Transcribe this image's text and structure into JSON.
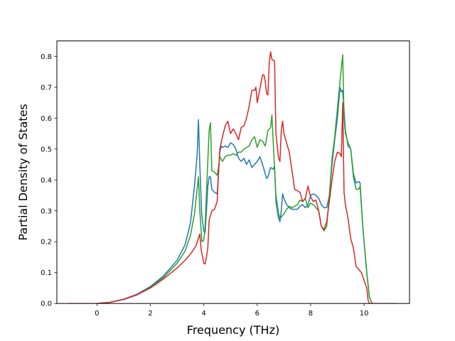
{
  "chart_data": {
    "type": "line",
    "title": "",
    "xlabel": "Frequency (THz)",
    "ylabel": "Partial Density of States",
    "xlim": [
      -1.5,
      11.7
    ],
    "ylim": [
      0.0,
      0.85
    ],
    "xticks": [
      0,
      2,
      4,
      6,
      8,
      10
    ],
    "yticks": [
      0.0,
      0.1,
      0.2,
      0.3,
      0.4,
      0.5,
      0.6,
      0.7,
      0.8
    ],
    "xtick_labels": [
      "0",
      "2",
      "4",
      "6",
      "8",
      "10"
    ],
    "ytick_labels": [
      "0.0",
      "0.1",
      "0.2",
      "0.3",
      "0.4",
      "0.5",
      "0.6",
      "0.7",
      "0.8"
    ],
    "grid": false,
    "legend": false,
    "series": [
      {
        "color": "#1f77b4",
        "points": [
          [
            -1.05,
            0.0
          ],
          [
            0.0,
            0.0
          ],
          [
            0.5,
            0.004
          ],
          [
            1.0,
            0.014
          ],
          [
            1.5,
            0.03
          ],
          [
            2.0,
            0.055
          ],
          [
            2.5,
            0.09
          ],
          [
            3.0,
            0.14
          ],
          [
            3.3,
            0.19
          ],
          [
            3.5,
            0.26
          ],
          [
            3.65,
            0.38
          ],
          [
            3.75,
            0.48
          ],
          [
            3.8,
            0.595
          ],
          [
            3.85,
            0.45
          ],
          [
            3.92,
            0.29
          ],
          [
            4.0,
            0.235
          ],
          [
            4.05,
            0.23
          ],
          [
            4.1,
            0.3
          ],
          [
            4.15,
            0.38
          ],
          [
            4.2,
            0.41
          ],
          [
            4.25,
            0.41
          ],
          [
            4.3,
            0.37
          ],
          [
            4.4,
            0.36
          ],
          [
            4.5,
            0.355
          ],
          [
            4.55,
            0.42
          ],
          [
            4.6,
            0.49
          ],
          [
            4.65,
            0.51
          ],
          [
            4.7,
            0.505
          ],
          [
            4.8,
            0.51
          ],
          [
            4.9,
            0.505
          ],
          [
            5.0,
            0.52
          ],
          [
            5.1,
            0.515
          ],
          [
            5.2,
            0.5
          ],
          [
            5.3,
            0.47
          ],
          [
            5.4,
            0.46
          ],
          [
            5.5,
            0.47
          ],
          [
            5.6,
            0.45
          ],
          [
            5.7,
            0.465
          ],
          [
            5.8,
            0.44
          ],
          [
            5.9,
            0.45
          ],
          [
            6.0,
            0.46
          ],
          [
            6.1,
            0.475
          ],
          [
            6.2,
            0.45
          ],
          [
            6.3,
            0.42
          ],
          [
            6.35,
            0.405
          ],
          [
            6.4,
            0.41
          ],
          [
            6.5,
            0.44
          ],
          [
            6.6,
            0.435
          ],
          [
            6.65,
            0.445
          ],
          [
            6.7,
            0.33
          ],
          [
            6.8,
            0.275
          ],
          [
            6.85,
            0.265
          ],
          [
            6.9,
            0.3
          ],
          [
            6.95,
            0.355
          ],
          [
            7.0,
            0.34
          ],
          [
            7.1,
            0.32
          ],
          [
            7.2,
            0.31
          ],
          [
            7.3,
            0.305
          ],
          [
            7.4,
            0.305
          ],
          [
            7.5,
            0.305
          ],
          [
            7.6,
            0.315
          ],
          [
            7.7,
            0.32
          ],
          [
            7.8,
            0.31
          ],
          [
            7.9,
            0.32
          ],
          [
            8.0,
            0.35
          ],
          [
            8.1,
            0.355
          ],
          [
            8.2,
            0.35
          ],
          [
            8.3,
            0.34
          ],
          [
            8.4,
            0.32
          ],
          [
            8.5,
            0.31
          ],
          [
            8.6,
            0.31
          ],
          [
            8.7,
            0.35
          ],
          [
            8.8,
            0.45
          ],
          [
            8.9,
            0.53
          ],
          [
            9.0,
            0.6
          ],
          [
            9.1,
            0.7
          ],
          [
            9.15,
            0.685
          ],
          [
            9.2,
            0.69
          ],
          [
            9.3,
            0.56
          ],
          [
            9.4,
            0.51
          ],
          [
            9.5,
            0.5
          ],
          [
            9.6,
            0.42
          ],
          [
            9.7,
            0.39
          ],
          [
            9.8,
            0.395
          ],
          [
            9.85,
            0.39
          ],
          [
            9.95,
            0.25
          ],
          [
            10.1,
            0.1
          ],
          [
            10.2,
            0.02
          ],
          [
            10.3,
            0.0
          ],
          [
            11.25,
            0.0
          ]
        ]
      },
      {
        "color": "#2ca02c",
        "points": [
          [
            -1.05,
            0.0
          ],
          [
            0.0,
            0.0
          ],
          [
            0.5,
            0.004
          ],
          [
            1.0,
            0.013
          ],
          [
            1.5,
            0.028
          ],
          [
            2.0,
            0.052
          ],
          [
            2.5,
            0.085
          ],
          [
            3.0,
            0.13
          ],
          [
            3.3,
            0.17
          ],
          [
            3.5,
            0.22
          ],
          [
            3.65,
            0.29
          ],
          [
            3.75,
            0.37
          ],
          [
            3.8,
            0.41
          ],
          [
            3.85,
            0.3
          ],
          [
            3.93,
            0.2
          ],
          [
            4.0,
            0.205
          ],
          [
            4.05,
            0.25
          ],
          [
            4.1,
            0.36
          ],
          [
            4.2,
            0.56
          ],
          [
            4.25,
            0.585
          ],
          [
            4.3,
            0.43
          ],
          [
            4.4,
            0.425
          ],
          [
            4.5,
            0.415
          ],
          [
            4.55,
            0.44
          ],
          [
            4.6,
            0.475
          ],
          [
            4.7,
            0.46
          ],
          [
            4.8,
            0.475
          ],
          [
            4.9,
            0.48
          ],
          [
            5.0,
            0.48
          ],
          [
            5.1,
            0.485
          ],
          [
            5.2,
            0.48
          ],
          [
            5.3,
            0.49
          ],
          [
            5.4,
            0.49
          ],
          [
            5.5,
            0.5
          ],
          [
            5.6,
            0.505
          ],
          [
            5.7,
            0.51
          ],
          [
            5.8,
            0.53
          ],
          [
            5.9,
            0.54
          ],
          [
            6.0,
            0.505
          ],
          [
            6.1,
            0.53
          ],
          [
            6.2,
            0.525
          ],
          [
            6.3,
            0.51
          ],
          [
            6.4,
            0.56
          ],
          [
            6.5,
            0.57
          ],
          [
            6.55,
            0.61
          ],
          [
            6.6,
            0.52
          ],
          [
            6.7,
            0.35
          ],
          [
            6.8,
            0.29
          ],
          [
            6.85,
            0.275
          ],
          [
            6.9,
            0.28
          ],
          [
            7.0,
            0.29
          ],
          [
            7.1,
            0.305
          ],
          [
            7.2,
            0.315
          ],
          [
            7.3,
            0.31
          ],
          [
            7.4,
            0.315
          ],
          [
            7.5,
            0.32
          ],
          [
            7.6,
            0.335
          ],
          [
            7.7,
            0.33
          ],
          [
            7.8,
            0.34
          ],
          [
            7.9,
            0.31
          ],
          [
            8.0,
            0.325
          ],
          [
            8.1,
            0.32
          ],
          [
            8.2,
            0.31
          ],
          [
            8.3,
            0.3
          ],
          [
            8.4,
            0.25
          ],
          [
            8.5,
            0.235
          ],
          [
            8.6,
            0.25
          ],
          [
            8.7,
            0.35
          ],
          [
            8.8,
            0.47
          ],
          [
            8.9,
            0.54
          ],
          [
            9.0,
            0.63
          ],
          [
            9.1,
            0.72
          ],
          [
            9.2,
            0.805
          ],
          [
            9.25,
            0.6
          ],
          [
            9.3,
            0.55
          ],
          [
            9.4,
            0.52
          ],
          [
            9.5,
            0.5
          ],
          [
            9.6,
            0.41
          ],
          [
            9.7,
            0.37
          ],
          [
            9.8,
            0.37
          ],
          [
            9.85,
            0.38
          ],
          [
            9.95,
            0.25
          ],
          [
            10.1,
            0.1
          ],
          [
            10.2,
            0.02
          ],
          [
            10.3,
            0.0
          ],
          [
            11.25,
            0.0
          ]
        ]
      },
      {
        "color": "#d62728",
        "points": [
          [
            -1.05,
            0.0
          ],
          [
            0.0,
            0.0
          ],
          [
            0.5,
            0.004
          ],
          [
            1.0,
            0.013
          ],
          [
            1.5,
            0.028
          ],
          [
            2.0,
            0.05
          ],
          [
            2.5,
            0.08
          ],
          [
            3.0,
            0.115
          ],
          [
            3.3,
            0.14
          ],
          [
            3.5,
            0.16
          ],
          [
            3.7,
            0.185
          ],
          [
            3.85,
            0.225
          ],
          [
            3.9,
            0.175
          ],
          [
            4.0,
            0.13
          ],
          [
            4.05,
            0.128
          ],
          [
            4.1,
            0.15
          ],
          [
            4.15,
            0.18
          ],
          [
            4.2,
            0.27
          ],
          [
            4.3,
            0.3
          ],
          [
            4.4,
            0.305
          ],
          [
            4.5,
            0.33
          ],
          [
            4.55,
            0.42
          ],
          [
            4.6,
            0.5
          ],
          [
            4.7,
            0.54
          ],
          [
            4.8,
            0.575
          ],
          [
            4.9,
            0.59
          ],
          [
            5.0,
            0.55
          ],
          [
            5.1,
            0.565
          ],
          [
            5.2,
            0.55
          ],
          [
            5.3,
            0.53
          ],
          [
            5.4,
            0.57
          ],
          [
            5.5,
            0.575
          ],
          [
            5.6,
            0.6
          ],
          [
            5.7,
            0.64
          ],
          [
            5.8,
            0.69
          ],
          [
            5.9,
            0.69
          ],
          [
            5.95,
            0.7
          ],
          [
            6.0,
            0.65
          ],
          [
            6.1,
            0.695
          ],
          [
            6.2,
            0.74
          ],
          [
            6.25,
            0.74
          ],
          [
            6.3,
            0.72
          ],
          [
            6.35,
            0.68
          ],
          [
            6.4,
            0.675
          ],
          [
            6.45,
            0.78
          ],
          [
            6.5,
            0.815
          ],
          [
            6.55,
            0.79
          ],
          [
            6.65,
            0.785
          ],
          [
            6.7,
            0.55
          ],
          [
            6.8,
            0.47
          ],
          [
            6.85,
            0.46
          ],
          [
            6.9,
            0.56
          ],
          [
            6.95,
            0.59
          ],
          [
            7.0,
            0.55
          ],
          [
            7.1,
            0.52
          ],
          [
            7.2,
            0.49
          ],
          [
            7.3,
            0.43
          ],
          [
            7.4,
            0.37
          ],
          [
            7.5,
            0.365
          ],
          [
            7.6,
            0.36
          ],
          [
            7.7,
            0.33
          ],
          [
            7.8,
            0.34
          ],
          [
            7.9,
            0.38
          ],
          [
            8.0,
            0.345
          ],
          [
            8.1,
            0.33
          ],
          [
            8.2,
            0.335
          ],
          [
            8.3,
            0.3
          ],
          [
            8.4,
            0.25
          ],
          [
            8.5,
            0.24
          ],
          [
            8.6,
            0.265
          ],
          [
            8.7,
            0.33
          ],
          [
            8.8,
            0.4
          ],
          [
            8.9,
            0.46
          ],
          [
            9.0,
            0.49
          ],
          [
            9.1,
            0.485
          ],
          [
            9.15,
            0.475
          ],
          [
            9.2,
            0.65
          ],
          [
            9.25,
            0.36
          ],
          [
            9.3,
            0.32
          ],
          [
            9.4,
            0.275
          ],
          [
            9.5,
            0.21
          ],
          [
            9.6,
            0.18
          ],
          [
            9.7,
            0.12
          ],
          [
            9.8,
            0.11
          ],
          [
            9.9,
            0.1
          ],
          [
            10.0,
            0.075
          ],
          [
            10.1,
            0.05
          ],
          [
            10.15,
            0.01
          ],
          [
            10.2,
            0.0
          ],
          [
            11.25,
            0.0
          ]
        ]
      }
    ]
  }
}
